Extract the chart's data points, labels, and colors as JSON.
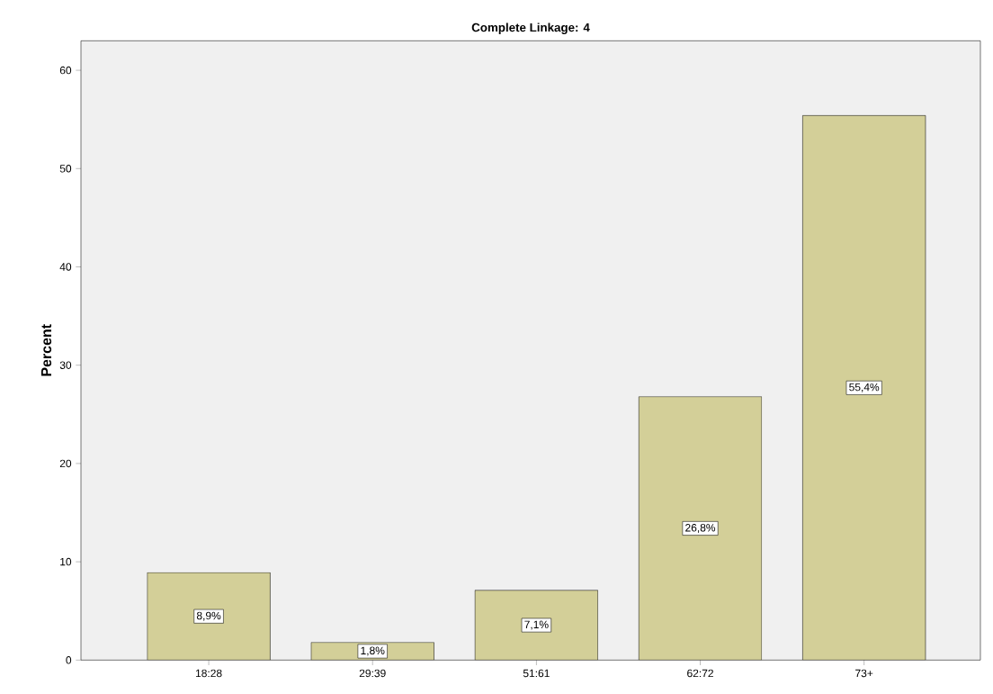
{
  "chart_data": {
    "type": "bar",
    "title": "Complete Linkage: 4",
    "ylabel": "Percent",
    "categories": [
      "18:28",
      "29:39",
      "51:61",
      "62:72",
      "73+"
    ],
    "values": [
      8.9,
      1.8,
      7.1,
      26.8,
      55.4
    ],
    "value_labels": [
      "8,9%",
      "1,8%",
      "7,1%",
      "26,8%",
      "55,4%"
    ],
    "color": "#d3cf98",
    "ylim": [
      0,
      63
    ],
    "yticks": [
      0,
      10,
      20,
      30,
      40,
      50,
      60
    ]
  }
}
